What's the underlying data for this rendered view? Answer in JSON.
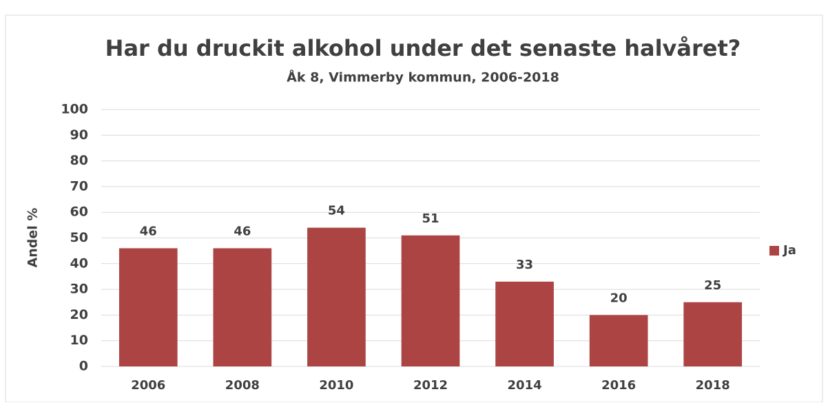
{
  "chart_data": {
    "type": "bar",
    "title": "Har du druckit alkohol under det senaste halvåret?",
    "subtitle": "Åk 8, Vimmerby kommun, 2006-2018",
    "y_label": "Andel %",
    "categories": [
      "2006",
      "2008",
      "2010",
      "2012",
      "2014",
      "2016",
      "2018"
    ],
    "series": [
      {
        "name": "Ja",
        "color": "#ab4442",
        "values": [
          46,
          46,
          54,
          51,
          33,
          20,
          25
        ]
      }
    ],
    "ylim": [
      0,
      100
    ],
    "yticks": [
      0,
      10,
      20,
      30,
      40,
      50,
      60,
      70,
      80,
      90,
      100
    ],
    "grid": true,
    "legend": "right"
  }
}
